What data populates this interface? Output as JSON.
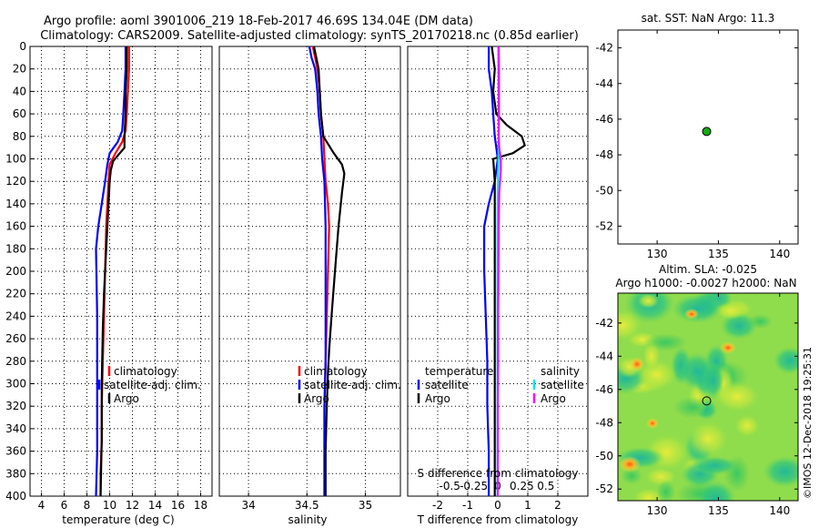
{
  "title_line1": "Argo profile: aoml 3901006_219 18-Feb-2017 46.69S 134.04E (DM data)",
  "title_line2": "Climatology: CARS2009. Satellite-adjusted climatology: synTS_20170218.nc (0.85d earlier)",
  "side_stamp": "©IMOS 12-Dec-2018 19:25:31",
  "colors": {
    "climatology": "#ff0000",
    "satellite": "#0000ff",
    "argo": "#000000",
    "salinity_sat": "#00e5e5",
    "salinity_argo": "#ff00ff",
    "marker": "#11aa11"
  },
  "chart_data": [
    {
      "id": "temperature",
      "type": "line",
      "xlabel": "temperature (deg C)",
      "ylabel": "",
      "xlim": [
        3,
        19
      ],
      "ylim": [
        0,
        400
      ],
      "y_reversed": true,
      "xticks": [
        "4",
        "6",
        "8",
        "10",
        "12",
        "14",
        "16",
        "18"
      ],
      "xtick_values": [
        4,
        6,
        8,
        10,
        12,
        14,
        16,
        18
      ],
      "yticks": [
        "0",
        "20",
        "40",
        "60",
        "80",
        "100",
        "120",
        "140",
        "160",
        "180",
        "200",
        "220",
        "240",
        "260",
        "280",
        "300",
        "320",
        "340",
        "360",
        "380",
        "400"
      ],
      "ytick_values": [
        0,
        20,
        40,
        60,
        80,
        100,
        120,
        140,
        160,
        180,
        200,
        220,
        240,
        260,
        280,
        300,
        320,
        340,
        360,
        380,
        400
      ],
      "grid": true,
      "legend": [
        "climatology",
        "satellite-adj. clim.",
        "Argo"
      ],
      "series": [
        {
          "name": "climatology",
          "color": "#ff0000",
          "x": [
            11.7,
            11.7,
            11.6,
            11.5,
            11.4,
            11.1,
            10.5,
            10.0,
            9.9,
            9.8,
            9.7,
            9.6,
            9.5,
            9.4,
            9.3,
            9.3,
            9.2,
            9.2
          ],
          "y": [
            0,
            20,
            40,
            60,
            75,
            85,
            95,
            105,
            120,
            140,
            160,
            200,
            240,
            280,
            320,
            350,
            380,
            400
          ]
        },
        {
          "name": "satellite-adj. clim.",
          "color": "#0000ff",
          "x": [
            11.4,
            11.4,
            11.3,
            11.2,
            11.1,
            10.7,
            10.0,
            9.8,
            9.6,
            9.3,
            9.0,
            8.8,
            8.9,
            8.9,
            8.9,
            8.9,
            8.8
          ],
          "y": [
            0,
            20,
            40,
            60,
            75,
            85,
            95,
            105,
            120,
            140,
            160,
            180,
            240,
            280,
            320,
            360,
            400
          ]
        },
        {
          "name": "Argo",
          "color": "#000000",
          "x": [
            11.5,
            11.5,
            11.4,
            11.4,
            11.3,
            11.3,
            10.3,
            10.1,
            10.0,
            9.9,
            9.8,
            9.7,
            9.6,
            9.5,
            9.4,
            9.3,
            9.3,
            9.2
          ],
          "y": [
            0,
            20,
            40,
            60,
            80,
            90,
            102,
            110,
            120,
            140,
            160,
            180,
            200,
            220,
            250,
            300,
            350,
            400
          ]
        }
      ]
    },
    {
      "id": "salinity",
      "type": "line",
      "xlabel": "salinity",
      "ylabel": "",
      "xlim": [
        33.75,
        35.3
      ],
      "ylim": [
        0,
        400
      ],
      "y_reversed": true,
      "xticks": [
        "34",
        "34.5",
        "35"
      ],
      "xtick_values": [
        34,
        34.5,
        35
      ],
      "grid": true,
      "legend": [
        "climatology",
        "satellite-adj. clim.",
        "Argo"
      ],
      "series": [
        {
          "name": "climatology",
          "color": "#ff0000",
          "x": [
            34.55,
            34.57,
            34.59,
            34.61,
            34.62,
            34.64,
            34.65,
            34.66,
            34.68,
            34.69,
            34.68,
            34.67,
            34.66,
            34.65,
            34.65,
            34.65
          ],
          "y": [
            0,
            10,
            20,
            40,
            60,
            80,
            100,
            120,
            140,
            160,
            200,
            240,
            280,
            320,
            360,
            400
          ]
        },
        {
          "name": "satellite-adj. clim.",
          "color": "#0000ff",
          "x": [
            34.52,
            34.54,
            34.57,
            34.59,
            34.6,
            34.62,
            34.63,
            34.65,
            34.66,
            34.66,
            34.66,
            34.66,
            34.65,
            34.65,
            34.65
          ],
          "y": [
            0,
            10,
            20,
            40,
            60,
            80,
            100,
            120,
            160,
            200,
            240,
            280,
            320,
            360,
            400
          ]
        },
        {
          "name": "Argo",
          "color": "#000000",
          "x": [
            34.56,
            34.58,
            34.6,
            34.61,
            34.62,
            34.64,
            34.73,
            34.8,
            34.82,
            34.8,
            34.77,
            34.74,
            34.71,
            34.69,
            34.68,
            34.67,
            34.66,
            34.66
          ],
          "y": [
            0,
            10,
            20,
            40,
            60,
            80,
            95,
            105,
            113,
            130,
            160,
            200,
            240,
            270,
            290,
            320,
            360,
            400
          ]
        }
      ]
    },
    {
      "id": "differences",
      "type": "line",
      "xlabel": "T difference from climatology",
      "top_xlabel": "S difference from climatology",
      "ylabel": "",
      "xlim": [
        -3,
        3
      ],
      "ylim": [
        0,
        400
      ],
      "y_reversed": true,
      "xticks": [
        "-2",
        "-1",
        "0",
        "1",
        "2"
      ],
      "xtick_values": [
        -2,
        -1,
        0,
        1,
        2
      ],
      "s_ticks": [
        "-0.5",
        "-0.25",
        "0",
        "0.25",
        "0.5"
      ],
      "grid": true,
      "legend_temperature_title": "temperature",
      "legend_salinity_title": "salinity",
      "legend_temperature": [
        "satellite",
        "Argo"
      ],
      "legend_salinity": [
        "satellite",
        "Argo"
      ],
      "series": [
        {
          "name": "T satellite",
          "color": "#0000ff",
          "x": [
            -0.3,
            -0.3,
            -0.2,
            -0.15,
            -0.1,
            -0.05,
            0.0,
            -0.1,
            -0.3,
            -0.45,
            -0.45,
            -0.4,
            -0.35,
            -0.35,
            -0.3,
            -0.3
          ],
          "y": [
            0,
            20,
            40,
            60,
            80,
            90,
            100,
            120,
            140,
            160,
            200,
            240,
            280,
            320,
            360,
            400
          ]
        },
        {
          "name": "T Argo",
          "color": "#000000",
          "x": [
            -0.2,
            -0.1,
            -0.15,
            -0.05,
            0.3,
            0.8,
            0.9,
            0.5,
            -0.15,
            -0.1,
            -0.1,
            -0.1,
            -0.1,
            -0.1,
            -0.1,
            -0.1
          ],
          "y": [
            0,
            20,
            40,
            60,
            70,
            80,
            88,
            95,
            100,
            120,
            160,
            200,
            240,
            280,
            320,
            400
          ]
        },
        {
          "name": "S satellite",
          "color": "#00e5e5",
          "x": [
            0.02,
            0.02,
            0.03,
            0.03,
            0.03,
            0.02,
            0.0,
            -0.01,
            -0.01,
            -0.01,
            -0.01,
            -0.01,
            -0.01
          ],
          "y": [
            0,
            20,
            40,
            60,
            80,
            100,
            120,
            160,
            200,
            240,
            280,
            320,
            400
          ]
        },
        {
          "name": "S Argo",
          "color": "#ff00ff",
          "x": [
            0.03,
            0.04,
            0.04,
            0.04,
            0.03,
            0.05,
            0.1,
            0.1,
            0.05,
            0.03,
            0.02,
            0.01,
            0.01,
            0.0,
            0.0
          ],
          "y": [
            0,
            20,
            40,
            60,
            80,
            90,
            100,
            110,
            130,
            160,
            200,
            240,
            280,
            320,
            400
          ]
        }
      ]
    },
    {
      "id": "sst_map",
      "type": "scatter",
      "title": "sat. SST: NaN Argo: 11.3",
      "xlim": [
        126.8,
        141.5
      ],
      "ylim": [
        -53,
        -41
      ],
      "xticks": [
        "130",
        "135",
        "140"
      ],
      "xtick_values": [
        130,
        135,
        140
      ],
      "yticks": [
        "-42",
        "-44",
        "-46",
        "-48",
        "-50",
        "-52"
      ],
      "ytick_values": [
        -42,
        -44,
        -46,
        -48,
        -50,
        -52
      ],
      "points": [
        {
          "lon": 134.04,
          "lat": -46.69
        }
      ]
    },
    {
      "id": "sla_map",
      "type": "heatmap",
      "title_line1": "Altim. SLA: -0.025",
      "title_line2": "Argo h1000: -0.0027 h2000: NaN",
      "xlim": [
        126.8,
        141.5
      ],
      "ylim": [
        -52.7,
        -40.2
      ],
      "xticks": [
        "130",
        "135",
        "140"
      ],
      "xtick_values": [
        130,
        135,
        140
      ],
      "yticks": [
        "-42",
        "-44",
        "-46",
        "-48",
        "-50",
        "-52"
      ],
      "ytick_values": [
        -42,
        -44,
        -46,
        -48,
        -50,
        -52
      ],
      "points": [
        {
          "lon": 134.04,
          "lat": -46.69
        }
      ],
      "field_description_colors": [
        "#22b89a",
        "#4ed36a",
        "#8ce04a",
        "#d8e83a",
        "#ffcc30",
        "#ff7a1a"
      ]
    }
  ]
}
